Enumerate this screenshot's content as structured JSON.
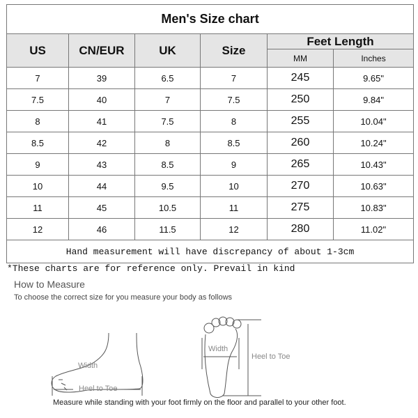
{
  "title": "Men's Size chart",
  "headers": {
    "us": "US",
    "cn_eur": "CN/EUR",
    "uk": "UK",
    "size": "Size",
    "feet_length": "Feet Length",
    "mm": "MM",
    "inches": "Inches"
  },
  "rows": [
    [
      "7",
      "39",
      "6.5",
      "7",
      "245",
      "9.65\""
    ],
    [
      "7.5",
      "40",
      "7",
      "7.5",
      "250",
      "9.84\""
    ],
    [
      "8",
      "41",
      "7.5",
      "8",
      "255",
      "10.04\""
    ],
    [
      "8.5",
      "42",
      "8",
      "8.5",
      "260",
      "10.24\""
    ],
    [
      "9",
      "43",
      "8.5",
      "9",
      "265",
      "10.43\""
    ],
    [
      "10",
      "44",
      "9.5",
      "10",
      "270",
      "10.63\""
    ],
    [
      "11",
      "45",
      "10.5",
      "11",
      "275",
      "10.83\""
    ],
    [
      "12",
      "46",
      "11.5",
      "12",
      "280",
      "11.02\""
    ]
  ],
  "note": "Hand measurement will have discrepancy of about 1-3cm",
  "reference": "*These charts are for reference only. Prevail in kind",
  "how_to": {
    "title": "How to Measure",
    "subtitle": "To choose the correct size for you measure your body as follows",
    "side_width": "Width",
    "side_heel": "Heel to Toe",
    "top_width": "Width",
    "top_heel": "Heel to Toe",
    "instruction": "Measure while standing with your foot firmly on the floor and parallel to your other foot."
  }
}
